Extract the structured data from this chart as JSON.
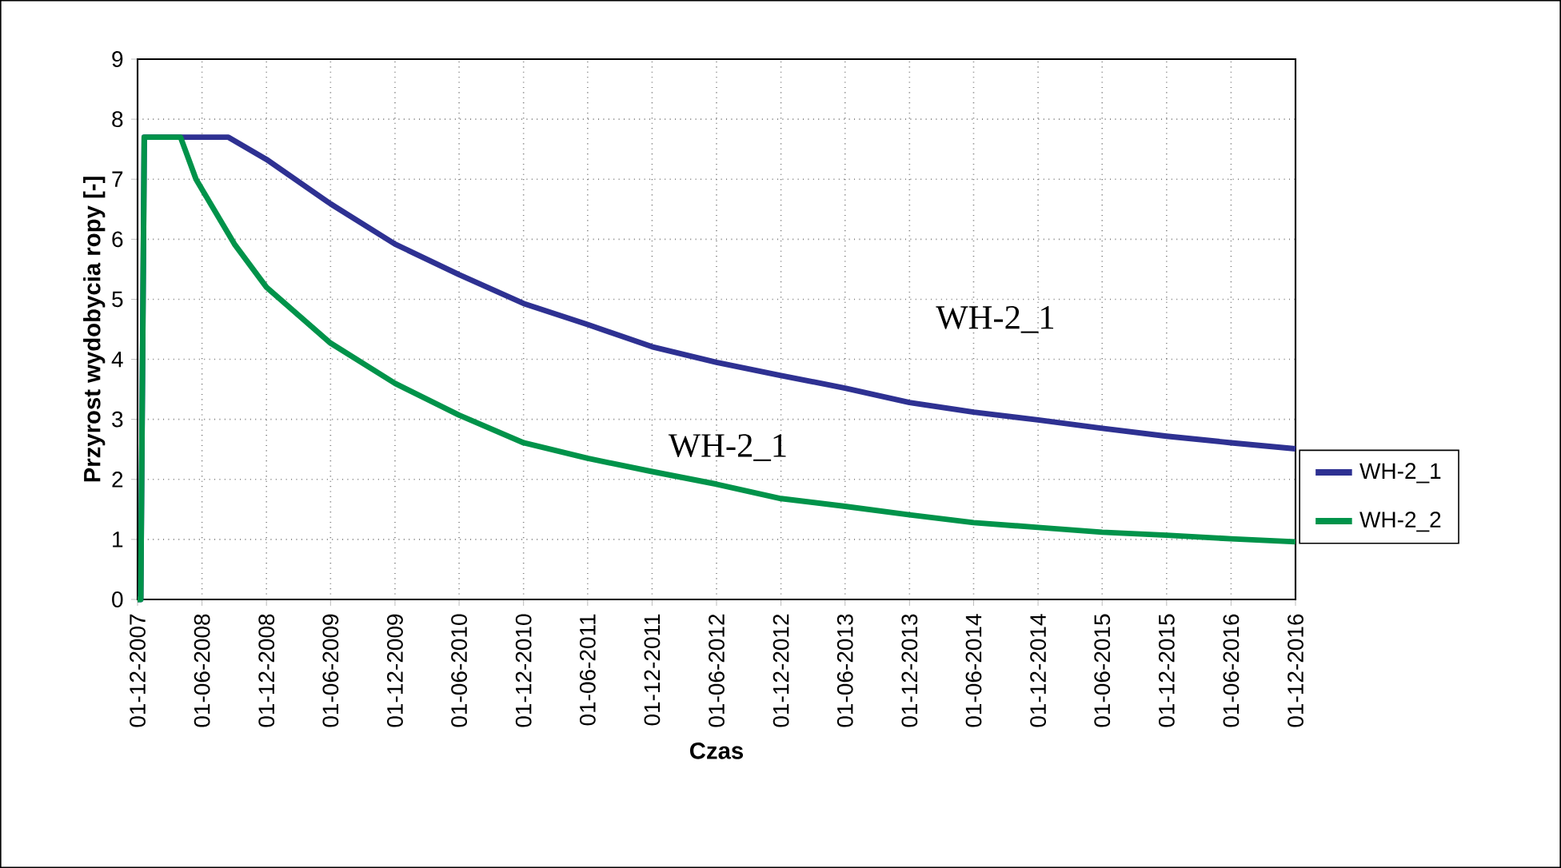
{
  "chart_data": {
    "type": "line",
    "xlabel": "Czas",
    "ylabel": "Przyrost wydobycia ropy [-]",
    "xlim": [
      "2007-12-01",
      "2016-12-01"
    ],
    "ylim": [
      0,
      9
    ],
    "yticks": [
      0,
      1,
      2,
      3,
      4,
      5,
      6,
      7,
      8,
      9
    ],
    "xticks": [
      {
        "value": "2007-12-01",
        "label": "01-12-2007"
      },
      {
        "value": "2008-06-01",
        "label": "01-06-2008"
      },
      {
        "value": "2008-12-01",
        "label": "01-12-2008"
      },
      {
        "value": "2009-06-01",
        "label": "01-06-2009"
      },
      {
        "value": "2009-12-01",
        "label": "01-12-2009"
      },
      {
        "value": "2010-06-01",
        "label": "01-06-2010"
      },
      {
        "value": "2010-12-01",
        "label": "01-12-2010"
      },
      {
        "value": "2011-06-01",
        "label": "01-06-2011"
      },
      {
        "value": "2011-12-01",
        "label": "01-12-2011"
      },
      {
        "value": "2012-06-01",
        "label": "01-06-2012"
      },
      {
        "value": "2012-12-01",
        "label": "01-12-2012"
      },
      {
        "value": "2013-06-01",
        "label": "01-06-2013"
      },
      {
        "value": "2013-12-01",
        "label": "01-12-2013"
      },
      {
        "value": "2014-06-01",
        "label": "01-06-2014"
      },
      {
        "value": "2014-12-01",
        "label": "01-12-2014"
      },
      {
        "value": "2015-06-01",
        "label": "01-06-2015"
      },
      {
        "value": "2015-12-01",
        "label": "01-12-2015"
      },
      {
        "value": "2016-06-01",
        "label": "01-06-2016"
      },
      {
        "value": "2016-12-01",
        "label": "01-12-2016"
      }
    ],
    "grid": true,
    "legend": "right",
    "marker": "none",
    "line_style": "solid",
    "series": [
      {
        "name": "WH-2_1",
        "color": "#2e3192",
        "x": [
          "2007-12-01",
          "2007-12-10",
          "2007-12-20",
          "2008-08-15",
          "2008-12-01",
          "2009-06-01",
          "2009-12-01",
          "2010-06-01",
          "2010-12-01",
          "2011-06-01",
          "2011-12-01",
          "2012-06-01",
          "2012-12-01",
          "2013-06-01",
          "2013-12-01",
          "2014-06-01",
          "2014-12-01",
          "2015-06-01",
          "2015-12-01",
          "2016-06-01",
          "2016-12-01"
        ],
        "values": [
          0,
          0,
          7.7,
          7.7,
          7.33,
          6.59,
          5.92,
          5.41,
          4.93,
          4.58,
          4.21,
          3.95,
          3.73,
          3.52,
          3.28,
          3.12,
          2.99,
          2.85,
          2.72,
          2.61,
          2.51
        ]
      },
      {
        "name": "WH-2_2",
        "color": "#00934a",
        "x": [
          "2007-12-01",
          "2007-12-10",
          "2007-12-20",
          "2008-04-01",
          "2008-05-15",
          "2008-09-01",
          "2008-12-01",
          "2009-06-01",
          "2009-12-01",
          "2010-06-01",
          "2010-12-01",
          "2011-06-01",
          "2011-12-01",
          "2012-06-01",
          "2012-12-01",
          "2013-06-01",
          "2013-12-01",
          "2014-06-01",
          "2014-12-01",
          "2015-06-01",
          "2015-12-01",
          "2016-06-01",
          "2016-12-01"
        ],
        "values": [
          0,
          0,
          7.7,
          7.7,
          7.0,
          5.92,
          5.2,
          4.27,
          3.6,
          3.07,
          2.61,
          2.35,
          2.13,
          1.92,
          1.68,
          1.55,
          1.41,
          1.28,
          1.2,
          1.12,
          1.07,
          1.01,
          0.96
        ]
      }
    ],
    "annotations": [
      "WH-2_1",
      "WH-2_1"
    ]
  }
}
